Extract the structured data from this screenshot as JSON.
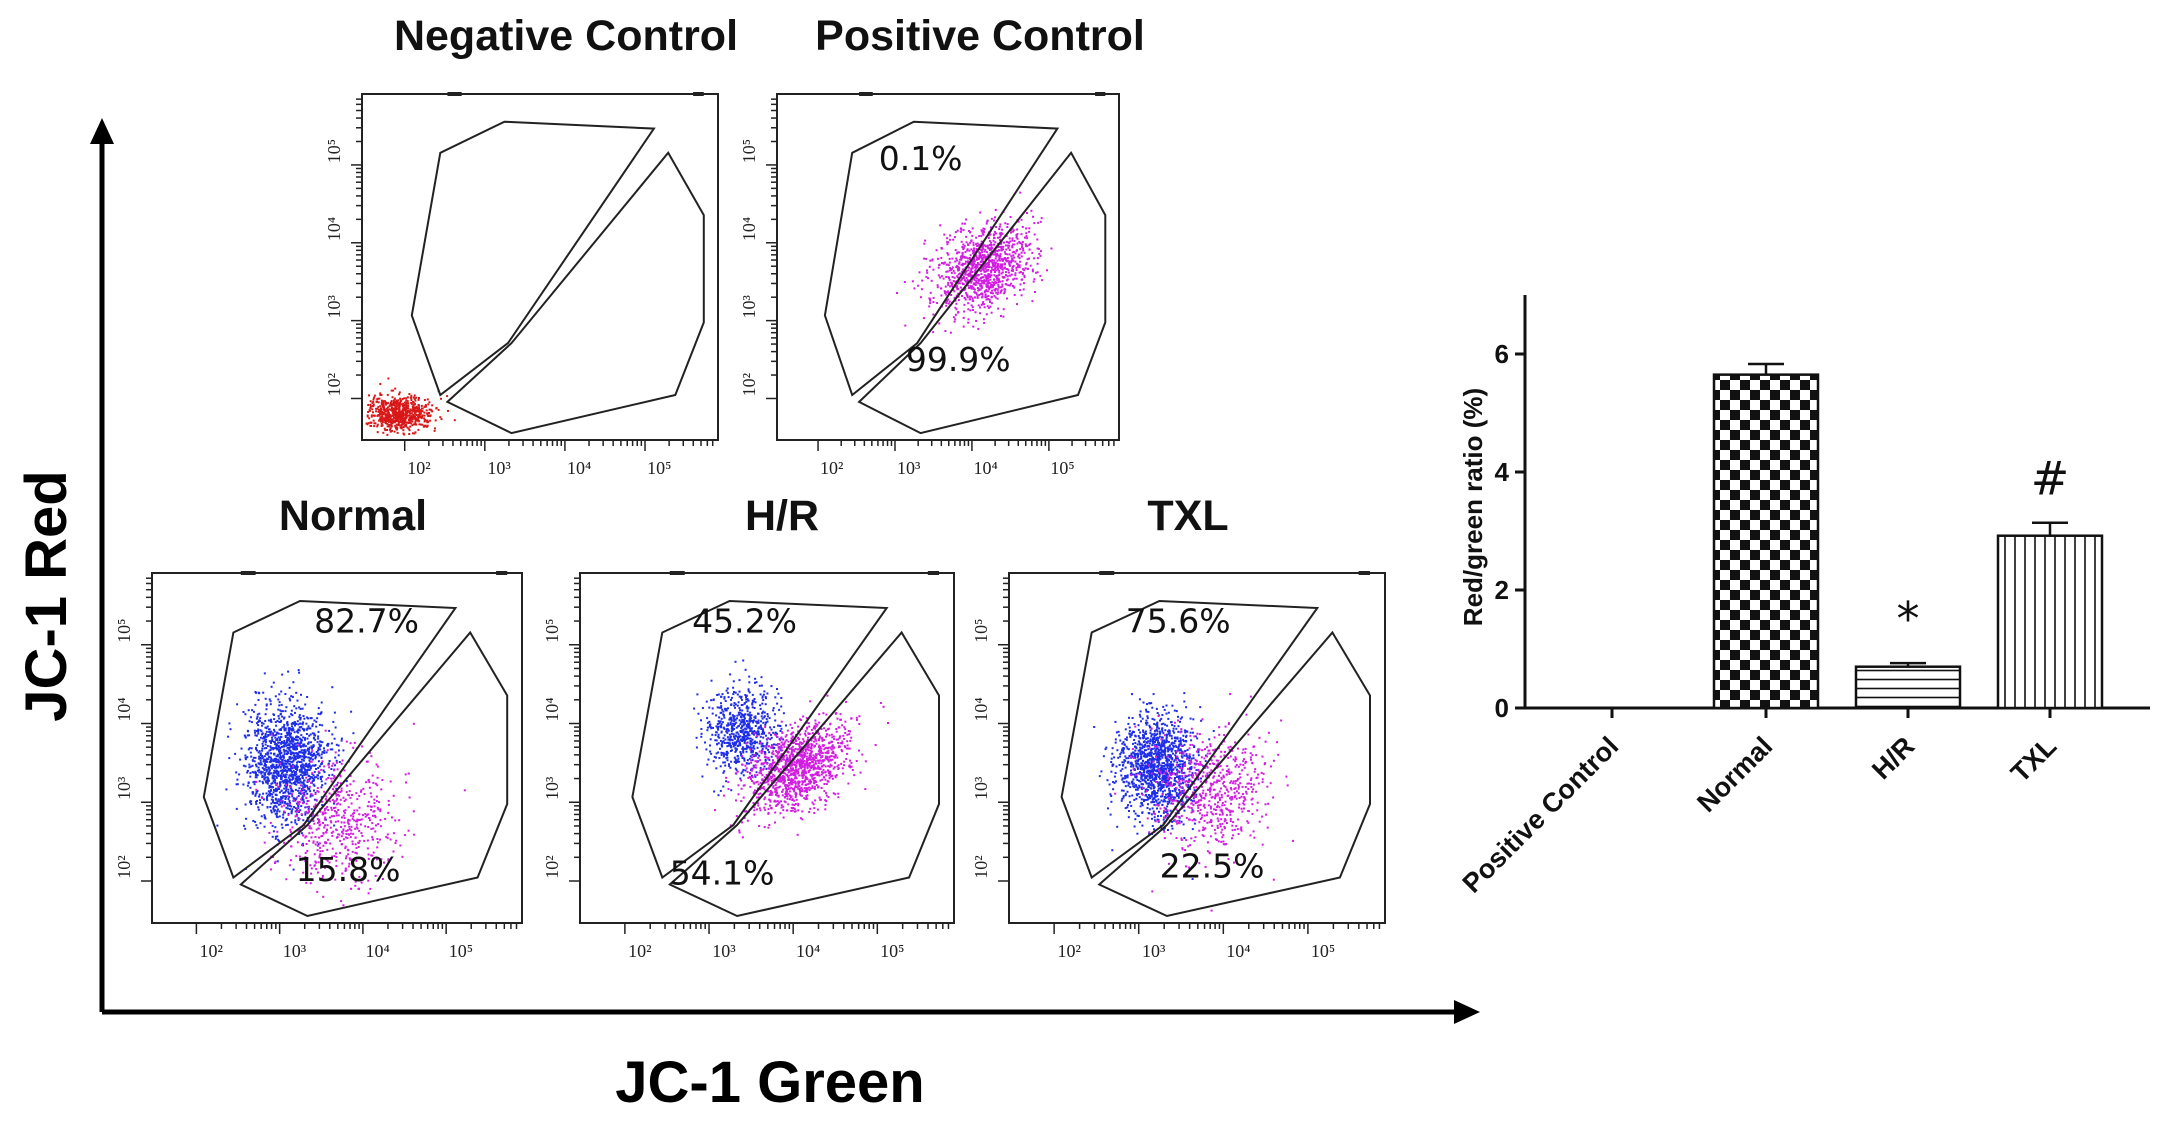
{
  "figure": {
    "x_axis_label": "JC-1 Green",
    "y_axis_label": "JC-1 Red"
  },
  "flow_panels": [
    {
      "title": "Negative Control",
      "upper_pct": "",
      "lower_pct": "",
      "population": "red"
    },
    {
      "title": "Positive Control",
      "upper_pct": "0.1%",
      "lower_pct": "99.9%",
      "population": "magenta"
    },
    {
      "title": "Normal",
      "upper_pct": "82.7%",
      "lower_pct": "15.8%",
      "population": "mixed-high"
    },
    {
      "title": "H/R",
      "upper_pct": "45.2%",
      "lower_pct": "54.1%",
      "population": "mixed-low"
    },
    {
      "title": "TXL",
      "upper_pct": "75.6%",
      "lower_pct": "22.5%",
      "population": "mixed-mid"
    }
  ],
  "tick_labels": {
    "x": [
      "10²",
      "10³",
      "10⁴",
      "10⁵"
    ],
    "y": [
      "10²",
      "10³",
      "10⁴",
      "10⁵"
    ]
  },
  "colors": {
    "red_pop": "#d81818",
    "magenta_pop": "#d21ee0",
    "blue_pop": "#1f2ee6"
  },
  "chart_data": {
    "type": "bar",
    "title": "",
    "xlabel": "",
    "ylabel": "Red/green ratio (%)",
    "ylim": [
      0,
      7
    ],
    "yticks": [
      0,
      2,
      4,
      6
    ],
    "categories": [
      "Positive Control",
      "Normal",
      "H/R",
      "TXL"
    ],
    "values": [
      0,
      5.65,
      0.7,
      2.92
    ],
    "errors": [
      0,
      0.18,
      0.06,
      0.22
    ],
    "patterns": [
      "none",
      "checker",
      "horizontal",
      "vertical"
    ],
    "annotations": [
      "",
      "",
      "*",
      "#"
    ]
  }
}
